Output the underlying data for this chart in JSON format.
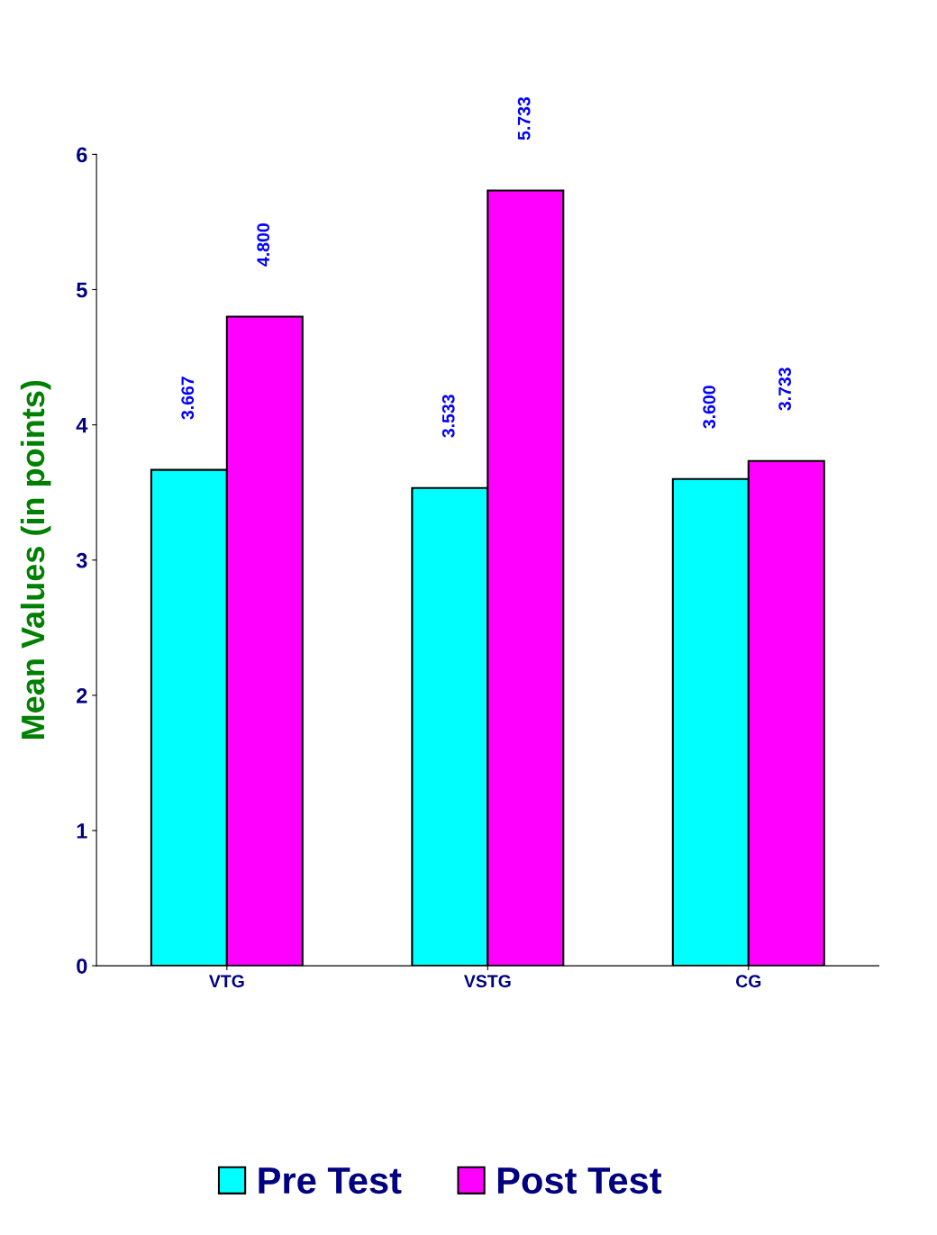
{
  "chart_data": {
    "type": "bar",
    "ylabel": "Mean Values (in points)",
    "categories": [
      "VTG",
      "VSTG",
      "CG"
    ],
    "series": [
      {
        "name": "Pre Test",
        "color": "#00ffff",
        "values": [
          3.667,
          3.533,
          3.6
        ],
        "value_labels": [
          "3.667",
          "3.533",
          "3.600"
        ]
      },
      {
        "name": "Post Test",
        "color": "#ff00ff",
        "values": [
          4.8,
          5.733,
          3.733
        ],
        "value_labels": [
          "4.800",
          "5.733",
          "3.733"
        ]
      }
    ],
    "ylim": [
      0,
      6
    ],
    "yticks": [
      0,
      1,
      2,
      3,
      4,
      5,
      6
    ],
    "grid": false,
    "legend": "bottom"
  }
}
